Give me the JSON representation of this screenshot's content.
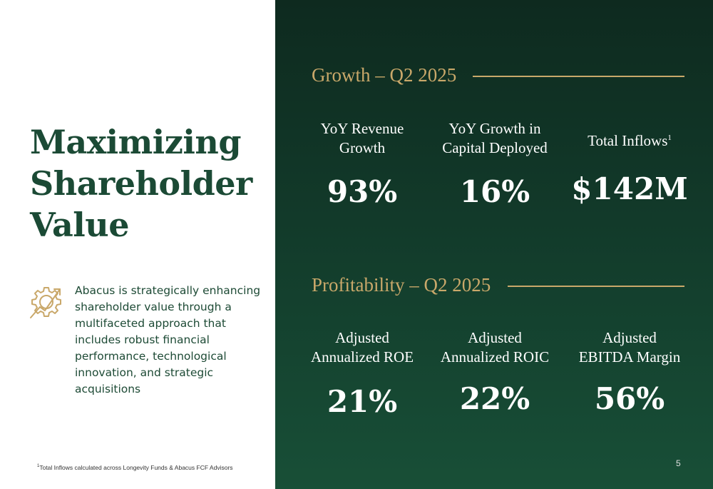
{
  "title_lines": [
    "Maximizing",
    "Shareholder",
    "Value"
  ],
  "description": "Abacus is strategically enhancing shareholder value through a multifaceted approach that includes robust financial performance, technological innovation, and strategic acquisitions",
  "icon": "gear-growth-icon",
  "footnote": {
    "marker": "1",
    "text": "Total Inflows calculated across Longevity Funds & Abacus FCF Advisors"
  },
  "growth": {
    "heading": "Growth – Q2 2025",
    "metrics": [
      {
        "label_line1": "YoY Revenue",
        "label_line2": "Growth",
        "value": "93%"
      },
      {
        "label_line1": "YoY Growth in",
        "label_line2": "Capital Deployed",
        "value": "16%"
      },
      {
        "label_line1": "Total Inflows",
        "label_sup": "1",
        "value": "$142M"
      }
    ]
  },
  "profitability": {
    "heading": "Profitability – Q2 2025",
    "metrics": [
      {
        "label_line1": "Adjusted",
        "label_line2": "Annualized ROE",
        "value": "21%"
      },
      {
        "label_line1": "Adjusted",
        "label_line2": "Annualized ROIC",
        "value": "22%"
      },
      {
        "label_line1": "Adjusted",
        "label_line2": "EBITDA Margin",
        "value": "56%"
      }
    ]
  },
  "page_number": "5",
  "colors": {
    "title_green": "#1b4a35",
    "panel_dark": "#0e2a1f",
    "panel_light": "#184f37",
    "gold": "#c9a86a",
    "white": "#ffffff"
  }
}
